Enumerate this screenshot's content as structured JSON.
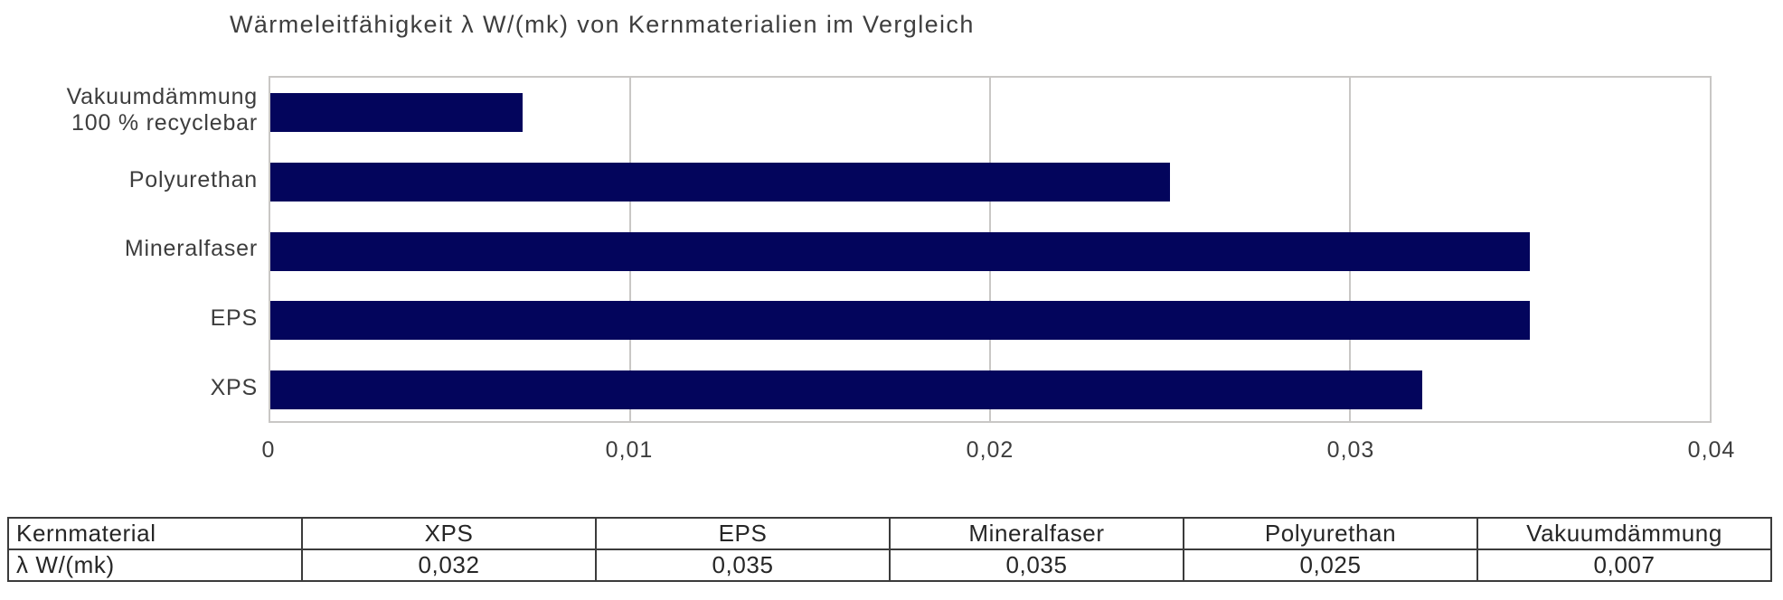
{
  "title": "Wärmeleitfähigkeit λ W/(mk) von Kernmaterialien im Vergleich",
  "chart_data": {
    "type": "bar",
    "orientation": "horizontal",
    "title": "Wärmeleitfähigkeit λ W/(mk) von Kernmaterialien im Vergleich",
    "categories": [
      "Vakuumdämmung\n100 % recyclebar",
      "Polyurethan",
      "Mineralfaser",
      "EPS",
      "XPS"
    ],
    "values": [
      0.007,
      0.025,
      0.035,
      0.035,
      0.032
    ],
    "xlabel": "",
    "ylabel": "",
    "xlim": [
      0,
      0.04
    ],
    "x_ticks": [
      {
        "value": 0,
        "label": "0"
      },
      {
        "value": 0.01,
        "label": "0,01"
      },
      {
        "value": 0.02,
        "label": "0,02"
      },
      {
        "value": 0.03,
        "label": "0,03"
      },
      {
        "value": 0.04,
        "label": "0,04"
      }
    ],
    "grid": true,
    "legend_position": "none",
    "colors": {
      "bar": "#03055c",
      "axis": "#c9c7c5",
      "text": "#3d3d3d"
    }
  },
  "table": {
    "header": [
      "Kernmaterial",
      "XPS",
      "EPS",
      "Mineralfaser",
      "Polyurethan",
      "Vakuumdämmung"
    ],
    "rows": [
      [
        "λ W/(mk)",
        "0,032",
        "0,035",
        "0,035",
        "0,025",
        "0,007"
      ]
    ]
  }
}
